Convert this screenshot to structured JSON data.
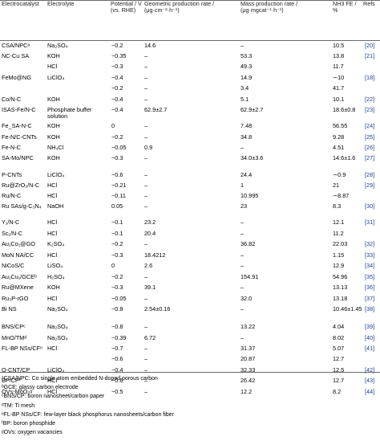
{
  "headers": {
    "catalyst": "Electrocatalyst",
    "electrolyte": "Electrolyte",
    "potential": "Potential / V (vs. RHE)",
    "geometric": "Geometric production rate / (μg·cm⁻²·h⁻¹)",
    "mass": "Mass production rate / (μg·mgcat⁻¹·h⁻¹)",
    "fe": "NH3 FE / %",
    "refs": "Refs"
  },
  "rows": [
    {
      "catalyst": "CSA/NPCᵃ",
      "electrolyte": "Na₂SO₄",
      "potential": "−0.2",
      "geometric": "14.6",
      "mass": "–",
      "fe": "10.5",
      "ref": "20"
    },
    {
      "catalyst": "NC-Cu SA",
      "electrolyte": "KOH",
      "potential": "−0.35",
      "geometric": "–",
      "mass": "53.3",
      "fe": "13.8",
      "ref": "21"
    },
    {
      "catalyst": "",
      "electrolyte": "HCl",
      "potential": "−0.3",
      "geometric": "–",
      "mass": "49.3",
      "fe": "11.7",
      "ref": ""
    },
    {
      "catalyst": "FeMo@NG",
      "electrolyte": "LiClO₄",
      "potential": "−0.4",
      "geometric": "–",
      "mass": "14.9",
      "fe": "∼10",
      "ref": "18"
    },
    {
      "catalyst": "",
      "electrolyte": "",
      "potential": "−0.2",
      "geometric": "–",
      "mass": "3.4",
      "fe": "41.7",
      "ref": ""
    },
    {
      "catalyst": "Co/N-C",
      "electrolyte": "KOH",
      "potential": "−0.4",
      "geometric": "–",
      "mass": "5.1",
      "fe": "10.1",
      "ref": "22"
    },
    {
      "catalyst": "ISAS-Fe/N-C",
      "electrolyte": "Phosphate buffer solution",
      "potential": "−0.4",
      "geometric": "62.9±2.7",
      "mass": "62.9±2.7",
      "fe": "18.6±0.8",
      "ref": "23"
    },
    {
      "catalyst": "Fe_SA-N-C",
      "electrolyte": "KOH",
      "potential": "0",
      "geometric": "–",
      "mass": "7.48",
      "fe": "56.55",
      "ref": "24"
    },
    {
      "catalyst": "Fe-N/C-CNTs",
      "electrolyte": "KOH",
      "potential": "−0.2",
      "geometric": "–",
      "mass": "34.8",
      "fe": "9.28",
      "ref": "25"
    },
    {
      "catalyst": "Fe-N-C",
      "electrolyte": "NH₄Cl",
      "potential": "−0.05",
      "geometric": "0.9",
      "mass": "–",
      "fe": "4.51",
      "ref": "26"
    },
    {
      "catalyst": "SA-Mo/NPC",
      "electrolyte": "KOH",
      "potential": "−0.3",
      "geometric": "–",
      "mass": "34.0±3.6",
      "fe": "14.6±1.6",
      "ref": "27"
    },
    {
      "catalyst": "P-CNTs",
      "electrolyte": "LiClO₄",
      "potential": "−0.6",
      "geometric": "–",
      "mass": "24.4",
      "fe": "∼0.9",
      "ref": "28"
    },
    {
      "catalyst": "Ru@ZrO₂/N-C",
      "electrolyte": "HCl",
      "potential": "−0.21",
      "geometric": "–",
      "mass": "1",
      "fe": "21",
      "ref": "29"
    },
    {
      "catalyst": "Ru/N-C",
      "electrolyte": "HCl",
      "potential": "−0.11",
      "geometric": "–",
      "mass": "10.995",
      "fe": "∼8.87",
      "ref": ""
    },
    {
      "catalyst": "Ru SAs/g-C₃N₄",
      "electrolyte": "NaOH",
      "potential": "0.05",
      "geometric": "–",
      "mass": "23",
      "fe": "8.3",
      "ref": "30"
    },
    {
      "catalyst": "Y₁/N-C",
      "electrolyte": "HCl",
      "potential": "−0.1",
      "geometric": "23.2",
      "mass": "–",
      "fe": "12.1",
      "ref": "31"
    },
    {
      "catalyst": "Sc₁/N-C",
      "electrolyte": "HCl",
      "potential": "−0.1",
      "geometric": "20.4",
      "mass": "–",
      "fe": "11.2",
      "ref": ""
    },
    {
      "catalyst": "Au₁Co₁@GO",
      "electrolyte": "K₂SO₄",
      "potential": "−0.2",
      "geometric": "–",
      "mass": "36.82",
      "fe": "22.03",
      "ref": "32"
    },
    {
      "catalyst": "MoN NA/CC",
      "electrolyte": "HCl",
      "potential": "−0.3",
      "geometric": "18.4212",
      "mass": "–",
      "fe": "1.15",
      "ref": "33"
    },
    {
      "catalyst": "NiCoS/C",
      "electrolyte": "LiSO₄",
      "potential": "0",
      "geometric": "2.6",
      "mass": "–",
      "fe": "12.9",
      "ref": "34"
    },
    {
      "catalyst": "Au₁Cu₁/GCEᵇ",
      "electrolyte": "H₂SO₄",
      "potential": "−0.2",
      "geometric": "–",
      "mass": "154.91",
      "fe": "54.96",
      "ref": "35"
    },
    {
      "catalyst": "Ru@MXene",
      "electrolyte": "KOH",
      "potential": "−0.3",
      "geometric": "39.1",
      "mass": "–",
      "fe": "13.13",
      "ref": "36"
    },
    {
      "catalyst": "Ru₃P-rGO",
      "electrolyte": "HCl",
      "potential": "−0.05",
      "geometric": "–",
      "mass": "32.0",
      "fe": "13.18",
      "ref": "37"
    },
    {
      "catalyst": "Bi NS",
      "electrolyte": "Na₂SO₄",
      "potential": "−0.8",
      "geometric": "2.54±0.16",
      "mass": "–",
      "fe": "10.46±1.45",
      "ref": "38"
    },
    {
      "catalyst": "BNS/CPᶜ",
      "electrolyte": "Na₂SO₄",
      "potential": "−0.8",
      "geometric": "–",
      "mass": "13.22",
      "fe": "4.04",
      "ref": "39"
    },
    {
      "catalyst": "MnO/TMᵈ",
      "electrolyte": "Na₂SO₄",
      "potential": "−0.39",
      "geometric": "6.72",
      "mass": "–",
      "fe": "8.02",
      "ref": "40"
    },
    {
      "catalyst": "FL-BP NSs/CFᵉ",
      "electrolyte": "HCl",
      "potential": "−0.7",
      "geometric": "–",
      "mass": "31.37",
      "fe": "5.07",
      "ref": "41"
    },
    {
      "catalyst": "",
      "electrolyte": "",
      "potential": "−0.6",
      "geometric": "–",
      "mass": "20.87",
      "fe": "12.7",
      "ref": ""
    },
    {
      "catalyst": "O-CNT/CP",
      "electrolyte": "LiClO₄",
      "potential": "−0.4",
      "geometric": "–",
      "mass": "32.33",
      "fe": "12.5",
      "ref": "42"
    },
    {
      "catalyst": "BP/CPᶠ",
      "electrolyte": "HCl",
      "potential": "−0.6",
      "geometric": "–",
      "mass": "26.42",
      "fe": "12.7",
      "ref": "43"
    },
    {
      "catalyst": "OVs-MoO₃ᵍ",
      "electrolyte": "HCl",
      "potential": "−0.5",
      "geometric": "–",
      "mass": "12.2",
      "fe": "8.2",
      "ref": "44"
    }
  ],
  "footnotes": [
    "ᵃCSA/NPC: Co single atom embedded N-doped porous carbon",
    "ᵇGCE: glassy carbon electrode",
    "ᶜBNS/CP: boron nanosheet/carbon paper",
    "ᵈTM: Ti mesh",
    "ᵉFL-BP NSs/CF: few-layer black phosphorus nanosheets/carbon fiber",
    "ᶠBP: boron phosphide",
    "ᵍOVs: oxygen vacancies"
  ]
}
